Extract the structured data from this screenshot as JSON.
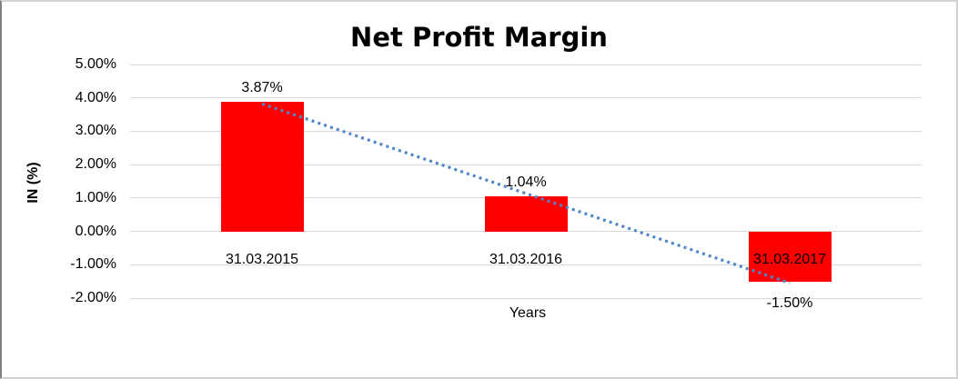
{
  "chart_data": {
    "type": "bar",
    "title": "Net Profit Margin",
    "xlabel": "Years",
    "ylabel": "IN (%)",
    "categories": [
      "31.03.2015",
      "31.03.2016",
      "31.03.2017"
    ],
    "values": [
      3.87,
      1.04,
      -1.5
    ],
    "data_labels": [
      "3.87%",
      "1.04%",
      "-1.50%"
    ],
    "ylim": [
      -2,
      5
    ],
    "yticks": [
      {
        "value": 5,
        "label": "5.00%"
      },
      {
        "value": 4,
        "label": "4.00%"
      },
      {
        "value": 3,
        "label": "3.00%"
      },
      {
        "value": 2,
        "label": "2.00%"
      },
      {
        "value": 1,
        "label": "1.00%"
      },
      {
        "value": 0,
        "label": "0.00%"
      },
      {
        "value": -1,
        "label": "-1.00%"
      },
      {
        "value": -2,
        "label": "-2.00%"
      }
    ],
    "grid": true,
    "legend": "none",
    "colors": {
      "bar": "#ff0000",
      "trendline": "#4f87c7",
      "gridline": "#d9d9d9",
      "text": "#000000"
    },
    "trendline": {
      "type": "linear",
      "style": "dotted"
    }
  }
}
